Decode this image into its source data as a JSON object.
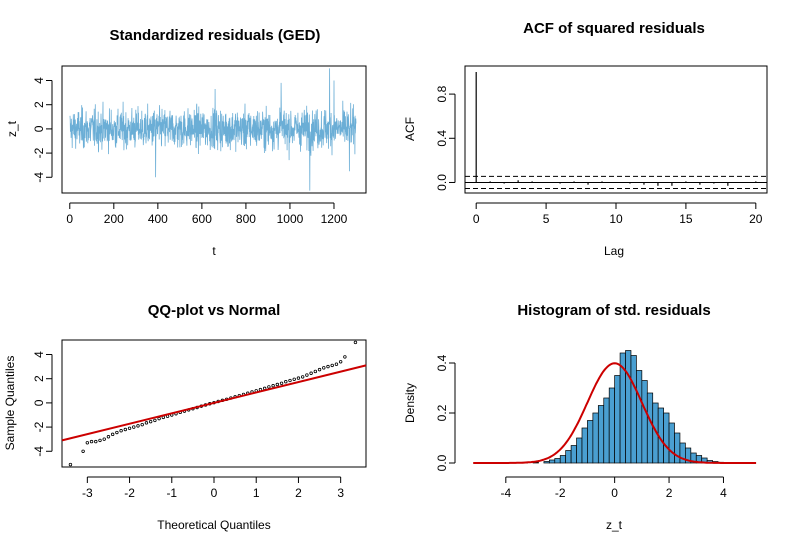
{
  "chart_data": [
    {
      "id": "p1",
      "type": "line",
      "title": "Standardized residuals (GED)",
      "xlabel": "t",
      "ylabel": "z_t",
      "xlim": [
        1,
        1300
      ],
      "ylim": [
        -5.3,
        5.2
      ],
      "xticks": [
        "0",
        "200",
        "400",
        "600",
        "800",
        "1000",
        "1200"
      ],
      "yticks": [
        "-4",
        "-2",
        "0",
        "2",
        "4"
      ],
      "color": "#6baed6",
      "series": [
        {
          "n": 1300,
          "summary_range": [
            -5.1,
            5.0
          ],
          "extremes": [
            {
              "t": 1180,
              "y": 5.0
            },
            {
              "t": 1090,
              "y": -5.1
            },
            {
              "t": 390,
              "y": -4.0
            },
            {
              "t": 1200,
              "y": 4.0
            },
            {
              "t": 960,
              "y": 3.8
            },
            {
              "t": 660,
              "y": 3.3
            },
            {
              "t": 1270,
              "y": -3.5
            }
          ]
        }
      ]
    },
    {
      "id": "p2",
      "type": "bar",
      "title": "ACF of squared residuals",
      "xlabel": "Lag",
      "ylabel": "ACF",
      "xlim": [
        0,
        20
      ],
      "ylim": [
        -0.05,
        1.0
      ],
      "xticks": [
        "0",
        "5",
        "10",
        "15",
        "20"
      ],
      "yticks": [
        "0.0",
        "0.4",
        "0.8"
      ],
      "lags": [
        0,
        1,
        2,
        3,
        4,
        5,
        6,
        7,
        8,
        9,
        10,
        11,
        12,
        13,
        14,
        15,
        16,
        17,
        18,
        19,
        20
      ],
      "values": [
        1.0,
        0.01,
        -0.01,
        0.02,
        0.01,
        0.0,
        -0.01,
        0.01,
        -0.02,
        0.01,
        0.0,
        -0.01,
        -0.02,
        -0.03,
        -0.03,
        0.01,
        -0.02,
        -0.01,
        -0.03,
        0.0,
        0.01
      ],
      "ci": 0.055
    },
    {
      "id": "p3",
      "type": "scatter",
      "title": "QQ-plot vs Normal",
      "xlabel": "Theoretical Quantiles",
      "ylabel": "Sample Quantiles",
      "xlim": [
        -3.6,
        3.6
      ],
      "ylim": [
        -5.3,
        5.2
      ],
      "xticks": [
        "-3",
        "-2",
        "-1",
        "0",
        "1",
        "2",
        "3"
      ],
      "yticks": [
        "-4",
        "-2",
        "0",
        "2",
        "4"
      ],
      "points": [
        {
          "x": -3.4,
          "y": -5.1
        },
        {
          "x": -3.1,
          "y": -4.0
        },
        {
          "x": -3.0,
          "y": -3.3
        },
        {
          "x": -2.9,
          "y": -3.2
        },
        {
          "x": -2.8,
          "y": -3.2
        },
        {
          "x": -2.7,
          "y": -3.1
        },
        {
          "x": -2.6,
          "y": -3.0
        },
        {
          "x": -2.5,
          "y": -2.8
        },
        {
          "x": -2.4,
          "y": -2.6
        },
        {
          "x": -2.3,
          "y": -2.45
        },
        {
          "x": -2.2,
          "y": -2.3
        },
        {
          "x": -2.1,
          "y": -2.2
        },
        {
          "x": -2.0,
          "y": -2.1
        },
        {
          "x": -1.9,
          "y": -2.0
        },
        {
          "x": -1.8,
          "y": -1.9
        },
        {
          "x": -1.7,
          "y": -1.8
        },
        {
          "x": -1.6,
          "y": -1.65
        },
        {
          "x": -1.5,
          "y": -1.55
        },
        {
          "x": -1.4,
          "y": -1.45
        },
        {
          "x": -1.3,
          "y": -1.3
        },
        {
          "x": -1.2,
          "y": -1.2
        },
        {
          "x": -1.1,
          "y": -1.1
        },
        {
          "x": -1.0,
          "y": -1.0
        },
        {
          "x": -0.9,
          "y": -0.9
        },
        {
          "x": -0.8,
          "y": -0.78
        },
        {
          "x": -0.7,
          "y": -0.68
        },
        {
          "x": -0.6,
          "y": -0.58
        },
        {
          "x": -0.5,
          "y": -0.48
        },
        {
          "x": -0.4,
          "y": -0.38
        },
        {
          "x": -0.3,
          "y": -0.27
        },
        {
          "x": -0.2,
          "y": -0.17
        },
        {
          "x": -0.1,
          "y": -0.07
        },
        {
          "x": 0.0,
          "y": 0.02
        },
        {
          "x": 0.1,
          "y": 0.12
        },
        {
          "x": 0.2,
          "y": 0.21
        },
        {
          "x": 0.3,
          "y": 0.3
        },
        {
          "x": 0.4,
          "y": 0.4
        },
        {
          "x": 0.5,
          "y": 0.5
        },
        {
          "x": 0.6,
          "y": 0.6
        },
        {
          "x": 0.7,
          "y": 0.7
        },
        {
          "x": 0.8,
          "y": 0.8
        },
        {
          "x": 0.9,
          "y": 0.9
        },
        {
          "x": 1.0,
          "y": 1.0
        },
        {
          "x": 1.1,
          "y": 1.1
        },
        {
          "x": 1.2,
          "y": 1.2
        },
        {
          "x": 1.3,
          "y": 1.32
        },
        {
          "x": 1.4,
          "y": 1.42
        },
        {
          "x": 1.5,
          "y": 1.52
        },
        {
          "x": 1.6,
          "y": 1.62
        },
        {
          "x": 1.7,
          "y": 1.75
        },
        {
          "x": 1.8,
          "y": 1.85
        },
        {
          "x": 1.9,
          "y": 1.95
        },
        {
          "x": 2.0,
          "y": 2.05
        },
        {
          "x": 2.1,
          "y": 2.15
        },
        {
          "x": 2.2,
          "y": 2.3
        },
        {
          "x": 2.3,
          "y": 2.45
        },
        {
          "x": 2.4,
          "y": 2.6
        },
        {
          "x": 2.5,
          "y": 2.75
        },
        {
          "x": 2.6,
          "y": 2.9
        },
        {
          "x": 2.7,
          "y": 3.0
        },
        {
          "x": 2.8,
          "y": 3.1
        },
        {
          "x": 2.9,
          "y": 3.2
        },
        {
          "x": 3.0,
          "y": 3.4
        },
        {
          "x": 3.1,
          "y": 3.8
        },
        {
          "x": 3.35,
          "y": 5.0
        }
      ],
      "line": {
        "x1": -3.6,
        "y1": -3.1,
        "x2": 3.6,
        "y2": 3.1
      },
      "line_color": "#cc0000"
    },
    {
      "id": "p4",
      "type": "bar",
      "title": "Histogram of std. residuals",
      "xlabel": "z_t",
      "ylabel": "Density",
      "xlim": [
        -5.5,
        5.6
      ],
      "ylim": [
        0,
        0.46
      ],
      "xticks": [
        "-4",
        "-2",
        "0",
        "2",
        "4"
      ],
      "yticks": [
        "0.0",
        "0.2",
        "0.4"
      ],
      "bin_width": 0.2,
      "bins_start": -3.4,
      "densities": [
        0.003,
        0.0,
        0.003,
        0.0,
        0.006,
        0.012,
        0.018,
        0.03,
        0.05,
        0.07,
        0.1,
        0.14,
        0.17,
        0.2,
        0.23,
        0.26,
        0.3,
        0.35,
        0.44,
        0.45,
        0.43,
        0.37,
        0.33,
        0.28,
        0.24,
        0.22,
        0.2,
        0.16,
        0.12,
        0.08,
        0.06,
        0.04,
        0.03,
        0.02,
        0.01,
        0.006,
        0.003
      ],
      "bar_color": "#4a9fd1",
      "curve_color": "#cc0000",
      "curve": {
        "mean": 0.0,
        "sd": 1.0,
        "from": -5.2,
        "to": 5.2
      }
    }
  ]
}
